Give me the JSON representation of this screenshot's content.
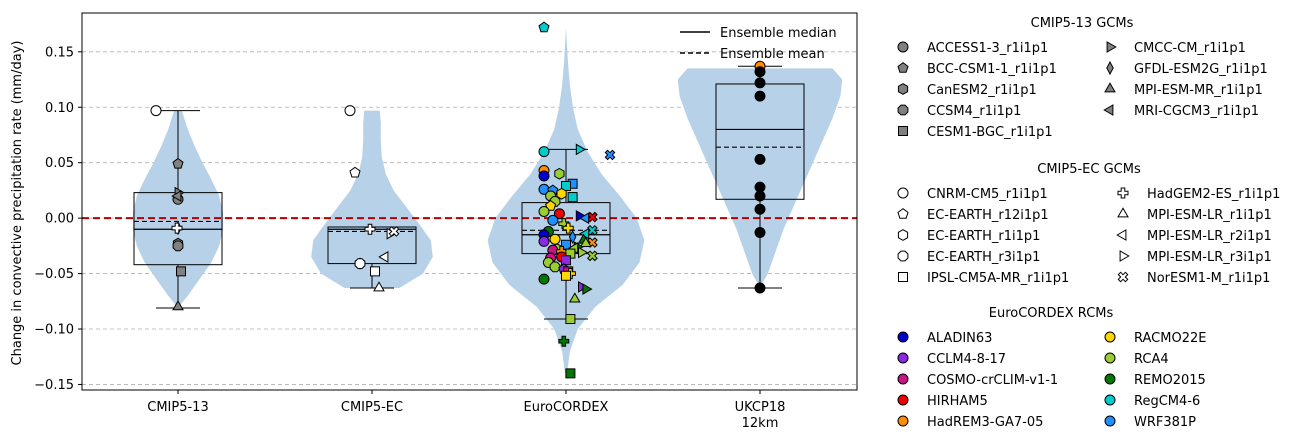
{
  "chart_data": {
    "type": "violin-box-scatter",
    "ylabel": "Change in convective precipitation rate (mm/day)",
    "ylim": [
      -0.155,
      0.185
    ],
    "yticks": [
      -0.15,
      -0.1,
      -0.05,
      0.0,
      0.05,
      0.1,
      0.15
    ],
    "ytick_labels": [
      "−0.15",
      "−0.10",
      "−0.05",
      "0.00",
      "0.05",
      "0.10",
      "0.15"
    ],
    "categories": [
      {
        "label": "CMIP5-13",
        "label2": ""
      },
      {
        "label": "CMIP5-EC",
        "label2": ""
      },
      {
        "label": "EuroCORDEX",
        "label2": ""
      },
      {
        "label": "UKCP18",
        "label2": "12km"
      }
    ],
    "grid": "horizontal dashed",
    "zero_line_color": "#b30000",
    "violin_color": "#b7d2e8",
    "legend_lines": [
      {
        "label": "Ensemble median",
        "style": "solid"
      },
      {
        "label": "Ensemble mean",
        "style": "dashed"
      }
    ],
    "groups": [
      {
        "violin": [
          [
            -0.081,
            0.0
          ],
          [
            -0.07,
            0.1
          ],
          [
            -0.055,
            0.22
          ],
          [
            -0.04,
            0.34
          ],
          [
            -0.025,
            0.42
          ],
          [
            -0.01,
            0.46
          ],
          [
            0.005,
            0.46
          ],
          [
            0.02,
            0.42
          ],
          [
            0.035,
            0.34
          ],
          [
            0.05,
            0.25
          ],
          [
            0.065,
            0.17
          ],
          [
            0.08,
            0.1
          ],
          [
            0.097,
            0.04
          ]
        ],
        "box": {
          "q1": -0.042,
          "median": -0.01,
          "mean": -0.003,
          "q3": 0.023,
          "wmin": -0.081,
          "wmax": 0.097
        }
      },
      {
        "violin": [
          [
            -0.063,
            0.28
          ],
          [
            -0.05,
            0.52
          ],
          [
            -0.035,
            0.62
          ],
          [
            -0.02,
            0.6
          ],
          [
            -0.005,
            0.48
          ],
          [
            0.01,
            0.35
          ],
          [
            0.025,
            0.22
          ],
          [
            0.04,
            0.14
          ],
          [
            0.055,
            0.1
          ],
          [
            0.07,
            0.09
          ],
          [
            0.085,
            0.09
          ],
          [
            0.097,
            0.08
          ]
        ],
        "box": {
          "q1": -0.041,
          "median": -0.01,
          "mean": -0.012,
          "q3": -0.008,
          "wmin": -0.063,
          "wmax": -0.008
        }
      },
      {
        "violin": [
          [
            -0.14,
            0.01
          ],
          [
            -0.12,
            0.04
          ],
          [
            -0.1,
            0.12
          ],
          [
            -0.08,
            0.3
          ],
          [
            -0.06,
            0.58
          ],
          [
            -0.04,
            0.75
          ],
          [
            -0.02,
            0.8
          ],
          [
            0.0,
            0.72
          ],
          [
            0.02,
            0.55
          ],
          [
            0.04,
            0.36
          ],
          [
            0.06,
            0.22
          ],
          [
            0.08,
            0.12
          ],
          [
            0.1,
            0.07
          ],
          [
            0.12,
            0.04
          ],
          [
            0.14,
            0.02
          ],
          [
            0.172,
            0.0
          ]
        ],
        "box": {
          "q1": -0.032,
          "median": -0.015,
          "mean": -0.011,
          "q3": 0.014,
          "wmin": -0.091,
          "wmax": 0.062
        }
      },
      {
        "violin": [
          [
            -0.063,
            0.0
          ],
          [
            -0.05,
            0.08
          ],
          [
            -0.03,
            0.16
          ],
          [
            -0.01,
            0.24
          ],
          [
            0.01,
            0.34
          ],
          [
            0.03,
            0.44
          ],
          [
            0.05,
            0.54
          ],
          [
            0.07,
            0.64
          ],
          [
            0.09,
            0.74
          ],
          [
            0.11,
            0.82
          ],
          [
            0.125,
            0.84
          ],
          [
            0.135,
            0.74
          ]
        ],
        "box": {
          "q1": 0.017,
          "median": 0.08,
          "mean": 0.064,
          "q3": 0.121,
          "wmin": -0.063,
          "wmax": 0.137
        }
      }
    ],
    "gcm13_models": [
      {
        "name": "ACCESS1-3_r1i1p1",
        "marker": "circle",
        "value": 0.017
      },
      {
        "name": "BCC-CSM1-1_r1i1p1",
        "marker": "pentagon",
        "value": 0.049
      },
      {
        "name": "CanESM2_r1i1p1",
        "marker": "hexagon",
        "value": -0.023
      },
      {
        "name": "CCSM4_r1i1p1",
        "marker": "octagon",
        "value": -0.025
      },
      {
        "name": "CESM1-BGC_r1i1p1",
        "marker": "square",
        "value": -0.048
      },
      {
        "name": "CMCC-CM_r1i1p1",
        "marker": "tri-right",
        "value": 0.023
      },
      {
        "name": "GFDL-ESM2G_r1i1p1",
        "marker": "diamond-thin",
        "value": -0.009
      },
      {
        "name": "MPI-ESM-MR_r1i1p1",
        "marker": "tri-up",
        "value": -0.08
      },
      {
        "name": "MRI-CGCM3_r1i1p1",
        "marker": "tri-left",
        "value": 0.02
      }
    ],
    "gcm_ec_models": [
      {
        "name": "CNRM-CM5_r1i1p1",
        "marker": "circle",
        "value": 0.097
      },
      {
        "name": "EC-EARTH_r12i1p1",
        "marker": "pentagon",
        "value": 0.041
      },
      {
        "name": "EC-EARTH_r1i1p1",
        "marker": "hexagon",
        "value": -0.041
      },
      {
        "name": "EC-EARTH_r3i1p1",
        "marker": "octagon",
        "value": -0.041
      },
      {
        "name": "IPSL-CM5A-MR_r1i1p1",
        "marker": "square",
        "value": -0.048
      },
      {
        "name": "HadGEM2-ES_r1i1p1",
        "marker": "plus",
        "value": -0.01
      },
      {
        "name": "MPI-ESM-LR_r1i1p1",
        "marker": "tri-up",
        "value": -0.063
      },
      {
        "name": "MPI-ESM-LR_r2i1p1",
        "marker": "tri-left",
        "value": -0.035
      },
      {
        "name": "MPI-ESM-LR_r3i1p1",
        "marker": "tri-right",
        "value": -0.014
      },
      {
        "name": "NorESM1-M_r1i1p1",
        "marker": "x",
        "value": -0.012
      }
    ],
    "rcm_models": [
      {
        "name": "ALADIN63",
        "color": "#0000cc"
      },
      {
        "name": "CCLM4-8-17",
        "color": "#8a2be2"
      },
      {
        "name": "COSMO-crCLIM-v1-1",
        "color": "#c71585"
      },
      {
        "name": "HIRHAM5",
        "color": "#ee0000"
      },
      {
        "name": "HadREM3-GA7-05",
        "color": "#ff8c00"
      },
      {
        "name": "RACMO22E",
        "color": "#ffd700"
      },
      {
        "name": "RCA4",
        "color": "#9acd32"
      },
      {
        "name": "REMO2015",
        "color": "#007700"
      },
      {
        "name": "RegCM4-6",
        "color": "#00cccc"
      },
      {
        "name": "WRF381P",
        "color": "#1e90ff"
      }
    ],
    "rcm_points": [
      {
        "value": 0.172,
        "marker": "pentagon",
        "rcm": 8,
        "dx": -0.2
      },
      {
        "value": 0.062,
        "marker": "tri-right",
        "rcm": 8,
        "dx": 0.12
      },
      {
        "value": 0.06,
        "marker": "circle",
        "rcm": 8,
        "dx": -0.2
      },
      {
        "value": 0.057,
        "marker": "x",
        "rcm": 9,
        "dx": 0.4
      },
      {
        "value": 0.043,
        "marker": "circle",
        "rcm": 4,
        "dx": -0.2
      },
      {
        "value": 0.04,
        "marker": "hexagon",
        "rcm": 6,
        "dx": -0.06
      },
      {
        "value": 0.038,
        "marker": "circle",
        "rcm": 0,
        "dx": -0.2
      },
      {
        "value": 0.031,
        "marker": "square",
        "rcm": 9,
        "dx": 0.06
      },
      {
        "value": 0.029,
        "marker": "square",
        "rcm": 8,
        "dx": 0.0
      },
      {
        "value": 0.026,
        "marker": "circle",
        "rcm": 9,
        "dx": -0.2
      },
      {
        "value": 0.025,
        "marker": "pentagon",
        "rcm": 9,
        "dx": -0.12
      },
      {
        "value": 0.022,
        "marker": "hexagon",
        "rcm": 5,
        "dx": -0.04
      },
      {
        "value": 0.02,
        "marker": "circle",
        "rcm": 6,
        "dx": -0.14
      },
      {
        "value": 0.019,
        "marker": "square",
        "rcm": 8,
        "dx": 0.06
      },
      {
        "value": 0.015,
        "marker": "octagon",
        "rcm": 6,
        "dx": -0.1
      },
      {
        "value": 0.011,
        "marker": "pentagon",
        "rcm": 5,
        "dx": -0.14
      },
      {
        "value": 0.006,
        "marker": "circle",
        "rcm": 6,
        "dx": -0.2
      },
      {
        "value": 0.004,
        "marker": "circle",
        "rcm": 3,
        "dx": -0.06
      },
      {
        "value": 0.002,
        "marker": "tri-right",
        "rcm": 0,
        "dx": 0.12
      },
      {
        "value": 0.001,
        "marker": "x",
        "rcm": 3,
        "dx": 0.24
      },
      {
        "value": 0.0,
        "marker": "tri-left",
        "rcm": 9,
        "dx": 0.18
      },
      {
        "value": -0.002,
        "marker": "circle",
        "rcm": 9,
        "dx": -0.12
      },
      {
        "value": -0.005,
        "marker": "plus",
        "rcm": 6,
        "dx": -0.02
      },
      {
        "value": -0.009,
        "marker": "plus",
        "rcm": 5,
        "dx": 0.02
      },
      {
        "value": -0.011,
        "marker": "x",
        "rcm": 8,
        "dx": 0.24
      },
      {
        "value": -0.012,
        "marker": "circle",
        "rcm": 7,
        "dx": -0.16
      },
      {
        "value": -0.014,
        "marker": "tri-left",
        "rcm": 8,
        "dx": 0.18
      },
      {
        "value": -0.015,
        "marker": "circle",
        "rcm": 0,
        "dx": -0.2
      },
      {
        "value": -0.017,
        "marker": "diamond-thin",
        "rcm": 9,
        "dx": 0.06
      },
      {
        "value": -0.019,
        "marker": "circle",
        "rcm": 5,
        "dx": -0.1
      },
      {
        "value": -0.02,
        "marker": "tri-up",
        "rcm": 7,
        "dx": 0.16
      },
      {
        "value": -0.021,
        "marker": "circle",
        "rcm": 1,
        "dx": -0.2
      },
      {
        "value": -0.022,
        "marker": "x",
        "rcm": 4,
        "dx": 0.24
      },
      {
        "value": -0.023,
        "marker": "tri-up",
        "rcm": 6,
        "dx": 0.18
      },
      {
        "value": -0.024,
        "marker": "square",
        "rcm": 9,
        "dx": 0.0
      },
      {
        "value": -0.026,
        "marker": "tri-right",
        "rcm": 7,
        "dx": 0.1
      },
      {
        "value": -0.027,
        "marker": "tri-left",
        "rcm": 6,
        "dx": 0.08
      },
      {
        "value": -0.028,
        "marker": "hexagon",
        "rcm": 6,
        "dx": -0.08
      },
      {
        "value": -0.029,
        "marker": "circle",
        "rcm": 2,
        "dx": -0.12
      },
      {
        "value": -0.03,
        "marker": "plus",
        "rcm": 4,
        "dx": -0.04
      },
      {
        "value": -0.031,
        "marker": "tri-right",
        "rcm": 6,
        "dx": 0.14
      },
      {
        "value": -0.032,
        "marker": "square",
        "rcm": 6,
        "dx": 0.04
      },
      {
        "value": -0.034,
        "marker": "x",
        "rcm": 6,
        "dx": 0.24
      },
      {
        "value": -0.035,
        "marker": "circle",
        "rcm": 3,
        "dx": -0.04
      },
      {
        "value": -0.036,
        "marker": "circle",
        "rcm": 2,
        "dx": -0.14
      },
      {
        "value": -0.038,
        "marker": "square",
        "rcm": 1,
        "dx": 0.0
      },
      {
        "value": -0.04,
        "marker": "circle",
        "rcm": 6,
        "dx": -0.16
      },
      {
        "value": -0.044,
        "marker": "octagon",
        "rcm": 6,
        "dx": -0.1
      },
      {
        "value": -0.046,
        "marker": "pentagon",
        "rcm": 1,
        "dx": -0.02
      },
      {
        "value": -0.048,
        "marker": "square",
        "rcm": 2,
        "dx": 0.02
      },
      {
        "value": -0.05,
        "marker": "plus",
        "rcm": 5,
        "dx": 0.04
      },
      {
        "value": -0.052,
        "marker": "square",
        "rcm": 5,
        "dx": 0.0
      },
      {
        "value": -0.055,
        "marker": "circle",
        "rcm": 7,
        "dx": -0.2
      },
      {
        "value": -0.062,
        "marker": "tri-right",
        "rcm": 1,
        "dx": 0.14
      },
      {
        "value": -0.064,
        "marker": "tri-right",
        "rcm": 7,
        "dx": 0.18
      },
      {
        "value": -0.073,
        "marker": "tri-up",
        "rcm": 6,
        "dx": 0.08
      },
      {
        "value": -0.091,
        "marker": "square",
        "rcm": 6,
        "dx": 0.04
      },
      {
        "value": -0.111,
        "marker": "plus",
        "rcm": 7,
        "dx": -0.02
      },
      {
        "value": -0.14,
        "marker": "square",
        "rcm": 7,
        "dx": 0.04
      }
    ],
    "ukcp_points": [
      0.137,
      0.132,
      0.122,
      0.11,
      0.053,
      0.028,
      0.02,
      0.008,
      -0.013,
      -0.063
    ]
  },
  "legend": {
    "gcm13_title": "CMIP5-13 GCMs",
    "gcm_ec_title": "CMIP5-EC GCMs",
    "rcm_title": "EuroCORDEX RCMs"
  }
}
